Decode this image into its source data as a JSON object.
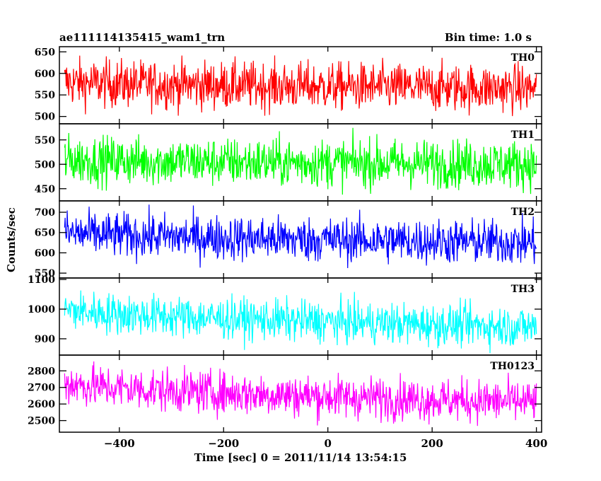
{
  "header": {
    "title": "ae111114135415_wam1_trn",
    "bin_time": "Bin time: 1.0 s"
  },
  "ylabel": "Counts/sec",
  "xlabel": "Time [sec] 0 = 2011/11/14 13:54:15",
  "chart_data": {
    "type": "line",
    "x_range": [
      -515,
      410
    ],
    "x_ticks": [
      -400,
      -200,
      0,
      200,
      400
    ],
    "x_tick_labels": [
      "−400",
      "−200",
      "0",
      "200",
      "400"
    ],
    "grid": false,
    "panels": [
      {
        "name": "TH0",
        "color": "#ff0000",
        "ylim": [
          483,
          662
        ],
        "y_ticks": [
          500,
          550,
          600,
          650
        ],
        "mean_start": 580,
        "mean_end": 565,
        "noise": 28
      },
      {
        "name": "TH1",
        "color": "#00ff00",
        "ylim": [
          425,
          583
        ],
        "y_ticks": [
          450,
          500,
          550
        ],
        "mean_start": 510,
        "mean_end": 500,
        "noise": 25
      },
      {
        "name": "TH2",
        "color": "#0000ff",
        "ylim": [
          538,
          728
        ],
        "y_ticks": [
          550,
          600,
          650,
          700
        ],
        "mean_start": 650,
        "mean_end": 625,
        "noise": 28
      },
      {
        "name": "TH3",
        "color": "#00ffff",
        "ylim": [
          845,
          1105
        ],
        "y_ticks": [
          900,
          1000,
          1100
        ],
        "mean_start": 1000,
        "mean_end": 940,
        "noise": 35
      },
      {
        "name": "TH0123",
        "color": "#ff00ff",
        "ylim": [
          2430,
          2895
        ],
        "y_ticks": [
          2500,
          2600,
          2700,
          2800
        ],
        "mean_start": 2730,
        "mean_end": 2610,
        "noise": 65
      }
    ]
  }
}
